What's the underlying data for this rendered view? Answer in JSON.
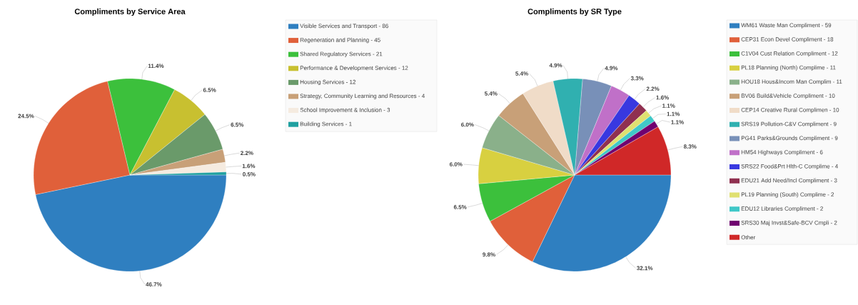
{
  "chart_data": [
    {
      "type": "pie",
      "title": "Compliments by Service Area",
      "legend": "right",
      "categories": [
        "Visible Services and Transport - 86",
        "Regeneration and Planning - 45",
        "Shared Regulatory Services - 21",
        "Performance & Development Services - 12",
        "Housing Services - 12",
        "Strategy, Community Learning and Resources - 4",
        "School Improvement & Inclusion - 3",
        "Building Services - 1"
      ],
      "values": [
        46.7,
        24.5,
        11.4,
        6.5,
        6.5,
        2.2,
        1.6,
        0.5
      ],
      "value_labels": [
        "46.7%",
        "24.5%",
        "11.4%",
        "6.5%",
        "6.5%",
        "2.2%",
        "1.6%",
        "0.5%"
      ],
      "colors": [
        "#2f7fc0",
        "#e0603a",
        "#3cc03c",
        "#c8c030",
        "#6a9a6a",
        "#c8a078",
        "#f5ebe0",
        "#20a0a0"
      ]
    },
    {
      "type": "pie",
      "title": "Compliments by SR Type",
      "legend": "right",
      "categories": [
        "WM61 Waste Man Compliment - 59",
        "CEP31 Econ Devel Compliment - 18",
        "C1V04 Cust Relation Compliment - 12",
        "PL18 Planning (North) Complime - 11",
        "HOU18 Hous&Incom Man Complim - 11",
        "BV06 Build&Vehicle Compliment - 10",
        "CEP14 Creative Rural Complimen - 10",
        "SRS19 Pollution-C&V Compliment - 9",
        "PG41 Parks&Grounds Compliment - 9",
        "HM54 Highways Compliment - 6",
        "SRS22 Food&Prt Hlth-C Complime - 4",
        "EDU21 Add Need/Incl Compliment - 3",
        "PL19 Planning (South) Complime - 2",
        "EDU12 Libraries Compliment - 2",
        "SRS30 Maj Invst&Safe-BCV Cmpli - 2",
        "Other"
      ],
      "values": [
        32.1,
        9.8,
        6.5,
        6.0,
        6.0,
        5.4,
        5.4,
        4.9,
        4.9,
        3.3,
        2.2,
        1.6,
        1.1,
        1.1,
        1.1,
        8.3
      ],
      "value_labels": [
        "32.1%",
        "9.8%",
        "6.5%",
        "6.0%",
        "6.0%",
        "5.4%",
        "5.4%",
        "4.9%",
        "4.9%",
        "3.3%",
        "2.2%",
        "1.6%",
        "1.1%",
        "1.1%",
        "1.1%",
        "8.3%"
      ],
      "colors": [
        "#2f7fc0",
        "#e0603a",
        "#3cc03c",
        "#d8d040",
        "#8ab08a",
        "#c8a078",
        "#f0dcc8",
        "#30b0b0",
        "#7890b8",
        "#c070c8",
        "#3838e0",
        "#903050",
        "#e0e070",
        "#40c8c8",
        "#700070",
        "#d02828"
      ]
    }
  ]
}
